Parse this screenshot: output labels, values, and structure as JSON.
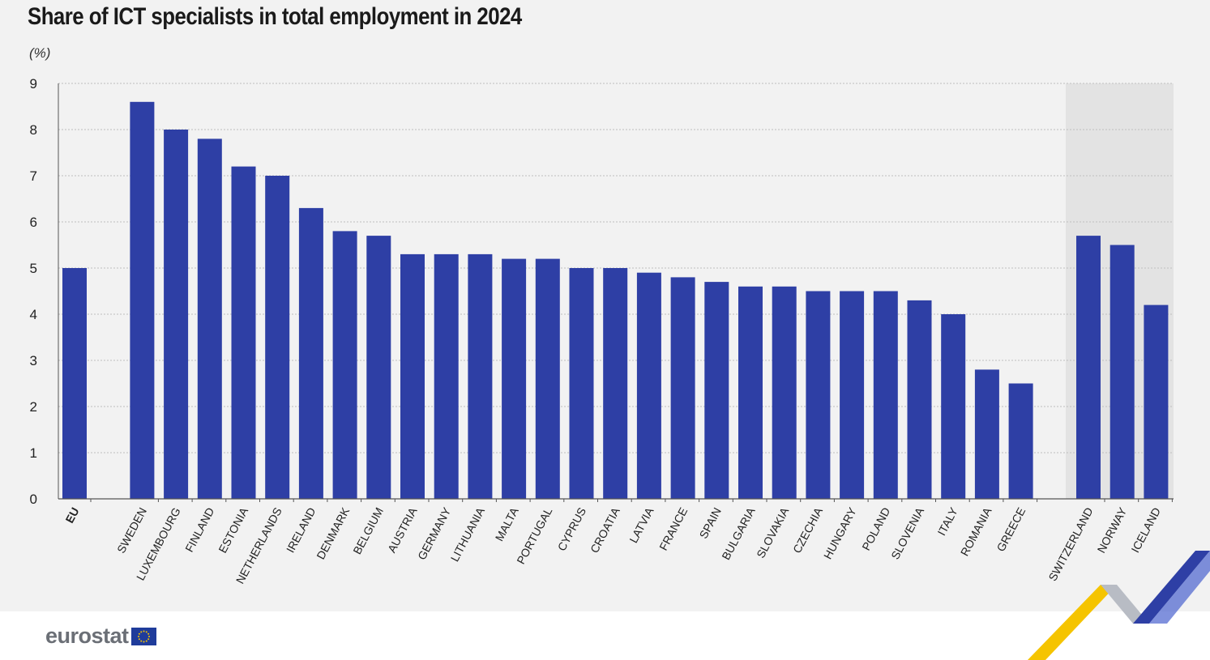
{
  "chart_data": {
    "type": "bar",
    "title": "Share of ICT specialists in total employment in 2024",
    "unit_label": "(%)",
    "ylim": [
      0,
      9
    ],
    "yticks": [
      "0",
      "1",
      "2",
      "3",
      "4",
      "5",
      "6",
      "7",
      "8",
      "9"
    ],
    "grid": true,
    "groups": [
      {
        "name": "eu",
        "categories": [
          "EU"
        ],
        "values": [
          5.0
        ]
      },
      {
        "name": "member-states",
        "categories": [
          "SWEDEN",
          "LUXEMBOURG",
          "FINLAND",
          "ESTONIA",
          "NETHERLANDS",
          "IRELAND",
          "DENMARK",
          "BELGIUM",
          "AUSTRIA",
          "GERMANY",
          "LITHUANIA",
          "MALTA",
          "PORTUGAL",
          "CYPRUS",
          "CROATIA",
          "LATVIA",
          "FRANCE",
          "SPAIN",
          "BULGARIA",
          "SLOVAKIA",
          "CZECHIA",
          "HUNGARY",
          "POLAND",
          "SLOVENIA",
          "ITALY",
          "ROMANIA",
          "GREECE"
        ],
        "values": [
          8.6,
          8.0,
          7.8,
          7.2,
          7.0,
          6.3,
          5.8,
          5.7,
          5.3,
          5.3,
          5.3,
          5.2,
          5.2,
          5.0,
          5.0,
          4.9,
          4.8,
          4.7,
          4.6,
          4.6,
          4.5,
          4.5,
          4.5,
          4.3,
          4.0,
          2.8,
          2.5
        ]
      },
      {
        "name": "efta",
        "categories": [
          "SWITZERLAND",
          "NORWAY",
          "ICELAND"
        ],
        "values": [
          5.7,
          5.5,
          4.2
        ]
      }
    ]
  },
  "colors": {
    "bar": "#2e3fa5",
    "panel": "#f2f2f2",
    "efta_shade": "#e3e3e3",
    "grid": "#bfbfbf",
    "axis": "#555555",
    "logo_text": "#6b6f76",
    "deco_yellow": "#f5c400",
    "deco_blue": "#2e3fa5",
    "deco_grey": "#9aa0aa"
  },
  "footer": {
    "logo": "eurostat"
  },
  "icons": {
    "flag": "eu-flag-icon",
    "deco": "eurostat-wave-icon"
  }
}
